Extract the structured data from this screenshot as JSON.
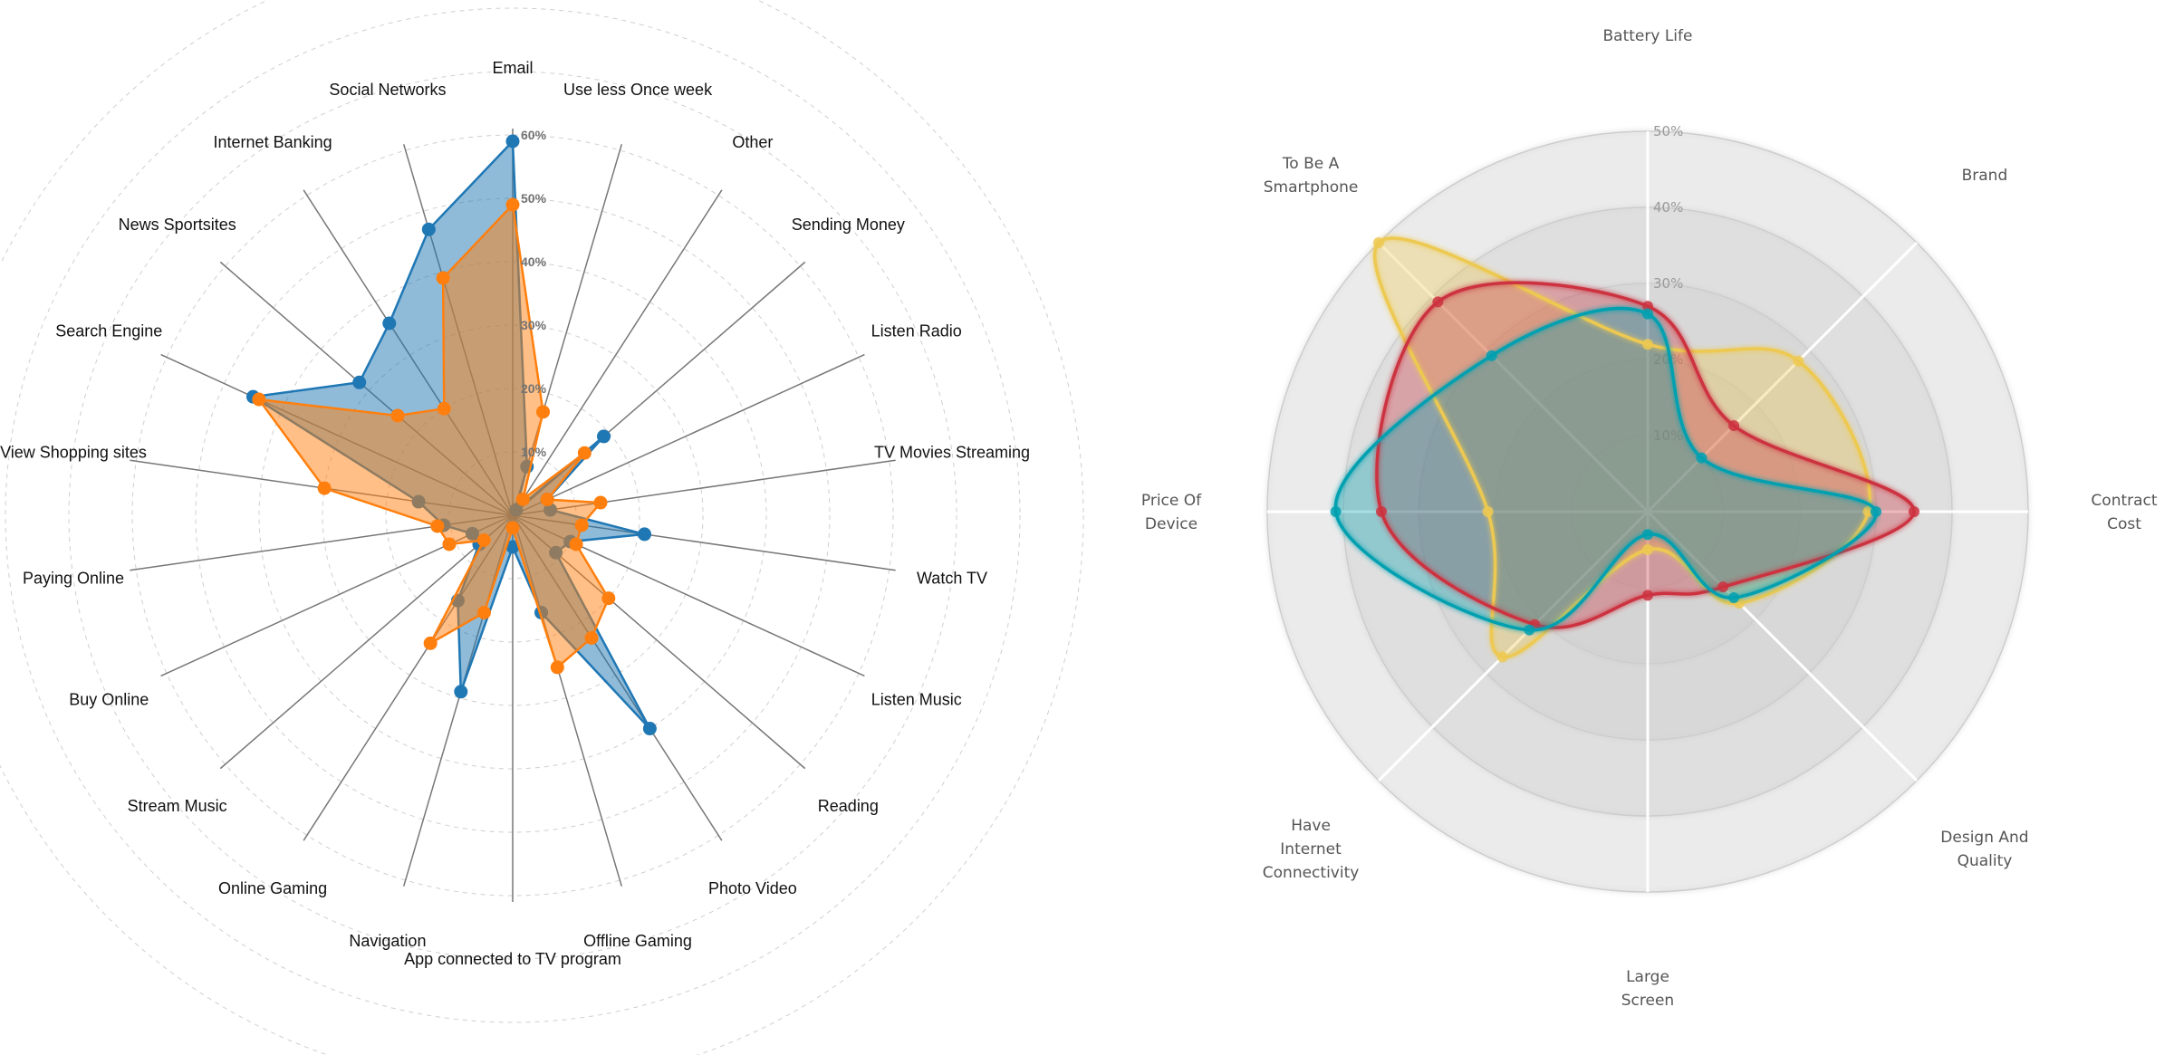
{
  "chart_data": [
    {
      "type": "radar",
      "categories": [
        "Email",
        "Use less Once week",
        "Other",
        "Sending Money",
        "Listen Radio",
        "TV Movies Streaming",
        "Watch TV",
        "Listen Music",
        "Reading",
        "Photo Video",
        "Offline Gaming",
        "App connected to TV program",
        "Navigation",
        "Online Gaming",
        "Stream Music",
        "Buy Online",
        "Paying Online",
        "View Shopping sites",
        "Search Engine",
        "News Sportsites",
        "Internet Banking",
        "Social Networks"
      ],
      "tick_labels": [
        "10%",
        "20%",
        "30%",
        "40%",
        "50%",
        "60%"
      ],
      "rlim": [
        0,
        60
      ],
      "grid": true,
      "series": [
        {
          "color": "#1f77b4",
          "values": [
            59,
            8,
            1,
            19,
            6,
            6,
            21,
            10,
            9,
            40,
            16,
            5,
            29,
            16,
            7,
            7,
            11,
            15,
            45,
            32,
            36,
            47
          ]
        },
        {
          "color": "#ff7f0e",
          "values": [
            49,
            17,
            3,
            15,
            6,
            14,
            11,
            11,
            20,
            23,
            25,
            2,
            16,
            24,
            6,
            11,
            12,
            30,
            44,
            24,
            20,
            39
          ]
        }
      ]
    },
    {
      "type": "radar",
      "categories": [
        "Battery Life",
        "Brand",
        "Contract Cost",
        "Design And Quality",
        "Large Screen",
        "Have Internet Connectivity",
        "Price Of Device",
        "To Be A Smartphone"
      ],
      "tick_labels": [
        "10%",
        "20%",
        "30%",
        "40%",
        "50%"
      ],
      "rlim": [
        0,
        50
      ],
      "grid": true,
      "series": [
        {
          "color": "#edc951",
          "values": [
            22,
            28,
            29,
            17,
            5,
            27,
            21,
            50
          ]
        },
        {
          "color": "#cc333f",
          "values": [
            27,
            16,
            35,
            14,
            11,
            21,
            35,
            39
          ]
        },
        {
          "color": "#00a0b0",
          "values": [
            26,
            10,
            30,
            16,
            3,
            22,
            41,
            29
          ]
        }
      ]
    }
  ]
}
